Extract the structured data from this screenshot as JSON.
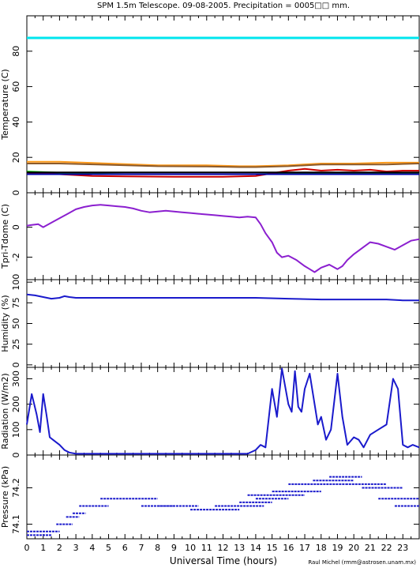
{
  "header": {
    "title": "SPM 1.5m Telescope. 09-08-2005. Precipitation = 0005□□ mm."
  },
  "footer": {
    "xlabel": "Universal Time (hours)",
    "credit": "Raul Michel (rmm@astrosen.unam.mx)"
  },
  "chart_data": [
    {
      "type": "line",
      "ylabel": "Temperature (C)",
      "xlim": [
        0,
        24
      ],
      "ylim": [
        0,
        100
      ],
      "yticks": [
        0,
        20,
        40,
        60,
        80
      ],
      "series": [
        {
          "color": "#00e5ee",
          "x": [
            0,
            24
          ],
          "y": [
            87.5,
            87.5
          ]
        },
        {
          "color": "#ff9a1a",
          "x": [
            0,
            2,
            5,
            8,
            11,
            13,
            14,
            16,
            18,
            20,
            22,
            24
          ],
          "y": [
            17.5,
            17.5,
            16.5,
            15.5,
            15.5,
            15.0,
            15.0,
            15.5,
            16.5,
            16.5,
            17.0,
            17.0
          ]
        },
        {
          "color": "#8b5a2b",
          "x": [
            0,
            2,
            5,
            8,
            11,
            13,
            14,
            16,
            18,
            20,
            22,
            24
          ],
          "y": [
            16.5,
            16.5,
            15.8,
            15.0,
            14.8,
            14.5,
            14.5,
            15.0,
            16.0,
            16.0,
            16.0,
            16.5
          ]
        },
        {
          "color": "#00cc00",
          "x": [
            0,
            3,
            6,
            9,
            12,
            14,
            16,
            18,
            20,
            22,
            24
          ],
          "y": [
            12.0,
            11.0,
            10.5,
            10.5,
            10.5,
            10.5,
            11.0,
            11.0,
            11.0,
            11.0,
            11.0
          ]
        },
        {
          "color": "#cc0000",
          "x": [
            0,
            2,
            4,
            6,
            9,
            12,
            14,
            15,
            16,
            17,
            18,
            19,
            20,
            21,
            22,
            23,
            24
          ],
          "y": [
            11.5,
            10.5,
            9.5,
            9.3,
            9.0,
            9.0,
            9.5,
            11.0,
            12.5,
            13.5,
            12.5,
            13.0,
            12.5,
            13.0,
            12.0,
            12.5,
            12.5
          ]
        },
        {
          "color": "#0000aa",
          "x": [
            0,
            24
          ],
          "y": [
            10.5,
            10.5
          ]
        },
        {
          "color": "#000000",
          "x": [
            0,
            24
          ],
          "y": [
            11.5,
            11.5
          ]
        }
      ]
    },
    {
      "type": "line",
      "ylabel": "Tpri-Tdome (C)",
      "xlim": [
        0,
        24
      ],
      "ylim": [
        -3.5,
        2.3
      ],
      "yticks": [
        -2,
        0
      ],
      "series": [
        {
          "color": "#8b1fcf",
          "x": [
            0,
            0.3,
            0.7,
            1.0,
            1.5,
            2.0,
            2.5,
            3.0,
            3.5,
            4.0,
            4.5,
            5.0,
            5.5,
            6.0,
            6.5,
            7.0,
            7.5,
            8.0,
            8.5,
            9.0,
            9.5,
            10.0,
            10.5,
            11.0,
            11.5,
            12.0,
            12.5,
            13.0,
            13.5,
            14.0,
            14.3,
            14.6,
            15.0,
            15.3,
            15.6,
            16.0,
            16.5,
            17.0,
            17.3,
            17.6,
            18.0,
            18.5,
            19.0,
            19.3,
            19.6,
            20.0,
            20.5,
            21.0,
            21.5,
            22.0,
            22.5,
            23.0,
            23.5,
            24.0
          ],
          "y": [
            0.1,
            0.15,
            0.2,
            0.0,
            0.3,
            0.6,
            0.9,
            1.2,
            1.35,
            1.45,
            1.5,
            1.45,
            1.4,
            1.35,
            1.25,
            1.1,
            1.0,
            1.05,
            1.1,
            1.05,
            1.0,
            0.95,
            0.9,
            0.85,
            0.8,
            0.75,
            0.7,
            0.65,
            0.7,
            0.65,
            0.2,
            -0.4,
            -1.0,
            -1.7,
            -2.0,
            -1.9,
            -2.2,
            -2.6,
            -2.8,
            -3.0,
            -2.7,
            -2.5,
            -2.8,
            -2.6,
            -2.2,
            -1.8,
            -1.4,
            -1.0,
            -1.1,
            -1.3,
            -1.5,
            -1.2,
            -0.9,
            -0.8
          ]
        }
      ]
    },
    {
      "type": "line",
      "ylabel": "Humidity (%)",
      "xlim": [
        0,
        24
      ],
      "ylim": [
        -3,
        103
      ],
      "yticks": [
        0,
        25,
        50,
        75,
        100
      ],
      "series": [
        {
          "color": "#1a1acc",
          "x": [
            0,
            0.5,
            1.0,
            1.5,
            2.0,
            2.3,
            2.6,
            3.0,
            4,
            6,
            8,
            10,
            12,
            14,
            16,
            18,
            20,
            22,
            23,
            24
          ],
          "y": [
            85,
            84,
            82,
            80,
            81,
            83,
            82,
            81,
            81,
            81,
            81,
            81,
            81,
            81,
            80,
            79,
            79,
            79,
            78,
            78
          ]
        }
      ]
    },
    {
      "type": "line",
      "ylabel": "Radiation (W/m2)",
      "xlim": [
        0,
        24
      ],
      "ylim": [
        0,
        345
      ],
      "yticks": [
        0,
        100,
        200,
        300
      ],
      "series": [
        {
          "color": "#1a1acc",
          "x": [
            0,
            0.3,
            0.6,
            0.8,
            1.0,
            1.2,
            1.4,
            1.6,
            1.8,
            2.0,
            2.3,
            2.6,
            3.0,
            6,
            9,
            12,
            13.5,
            14.0,
            14.3,
            14.6,
            15.0,
            15.3,
            15.6,
            16.0,
            16.2,
            16.4,
            16.6,
            16.8,
            17.0,
            17.3,
            17.6,
            17.8,
            18.0,
            18.3,
            18.6,
            19.0,
            19.3,
            19.6,
            20.0,
            20.3,
            20.6,
            21.0,
            21.5,
            22.0,
            22.4,
            22.7,
            23.0,
            23.3,
            23.6,
            24.0
          ],
          "y": [
            120,
            240,
            160,
            90,
            240,
            160,
            70,
            60,
            50,
            40,
            20,
            10,
            5,
            5,
            5,
            5,
            5,
            20,
            40,
            30,
            260,
            150,
            340,
            200,
            170,
            330,
            190,
            170,
            260,
            320,
            200,
            120,
            150,
            60,
            100,
            320,
            150,
            40,
            70,
            60,
            30,
            80,
            100,
            120,
            300,
            260,
            40,
            30,
            40,
            30
          ]
        }
      ]
    },
    {
      "type": "scatter",
      "ylabel": "Pressure (kPa)",
      "xlim": [
        0,
        24
      ],
      "ylim": [
        74.06,
        74.29
      ],
      "yticks": [
        74.1,
        74.2
      ],
      "series": [
        {
          "color": "#1a1acc",
          "segments": [
            [
              0.0,
              1.5,
              74.07
            ],
            [
              0.0,
              2.0,
              74.08
            ],
            [
              1.8,
              2.8,
              74.1
            ],
            [
              2.4,
              3.2,
              74.12
            ],
            [
              2.8,
              3.6,
              74.13
            ],
            [
              3.2,
              5.0,
              74.15
            ],
            [
              4.5,
              8.0,
              74.17
            ],
            [
              7.0,
              10.5,
              74.15
            ],
            [
              8.0,
              9.0,
              74.15
            ],
            [
              10.0,
              13.0,
              74.14
            ],
            [
              11.5,
              14.5,
              74.15
            ],
            [
              13.0,
              15.0,
              74.16
            ],
            [
              13.5,
              17.0,
              74.18
            ],
            [
              14.0,
              16.0,
              74.17
            ],
            [
              15.0,
              18.0,
              74.19
            ],
            [
              16.0,
              19.5,
              74.21
            ],
            [
              17.5,
              20.0,
              74.22
            ],
            [
              18.5,
              20.5,
              74.23
            ],
            [
              19.5,
              22.0,
              74.21
            ],
            [
              20.5,
              23.0,
              74.2
            ],
            [
              21.5,
              24.0,
              74.17
            ],
            [
              22.5,
              24.0,
              74.15
            ]
          ]
        }
      ]
    }
  ],
  "x_ticks": [
    0,
    1,
    2,
    3,
    4,
    5,
    6,
    7,
    8,
    9,
    10,
    11,
    12,
    13,
    14,
    15,
    16,
    17,
    18,
    19,
    20,
    21,
    22,
    23
  ]
}
